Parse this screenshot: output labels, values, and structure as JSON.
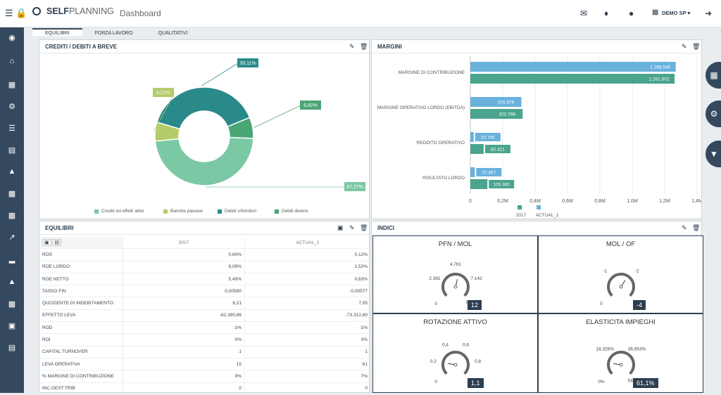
{
  "header": {
    "brand_bold": "SELF",
    "brand_rest": "PLANNING",
    "page_title": "Dashboard",
    "user_label": "DEMO SP"
  },
  "tabs": [
    {
      "label": "EQUILIBRI",
      "active": true
    },
    {
      "label": "FORZA LAVORO",
      "active": false
    },
    {
      "label": "QUALITATIVI",
      "active": false
    }
  ],
  "sidebar": {
    "icons": [
      "dashboard-icon",
      "home-icon",
      "widgets-icon",
      "settings-icon",
      "list-icon",
      "clipboard-icon",
      "bank-icon",
      "briefcase-icon",
      "toolbox-icon",
      "trend-icon",
      "bar-chart-icon",
      "warning-icon",
      "case-icon",
      "save-icon",
      "document-icon"
    ]
  },
  "crediti": {
    "title": "CREDITI / DEBITI A BREVE",
    "colors": [
      "#7bc8a4",
      "#b4cc69",
      "#2a8a8a",
      "#4aa574"
    ]
  },
  "margini": {
    "title": "MARGINI"
  },
  "equilibri": {
    "title": "EQUILIBRI",
    "columns": [
      "2017",
      "ACTUAL_1"
    ],
    "rows": [
      {
        "label": "ROS",
        "v1": "0,60%",
        "v2": "0,12%"
      },
      {
        "label": "ROE LORDO",
        "v1": "6,09%",
        "v2": "1,52%"
      },
      {
        "label": "ROE NETTO",
        "v1": "5,49%",
        "v2": "0,63%"
      },
      {
        "label": "TASSO FIN",
        "v1": "-0,00580",
        "v2": "-0,00577"
      },
      {
        "label": "QUOZIENTE DI INDEBITAMENTO",
        "v1": "6,21",
        "v2": "7,05"
      },
      {
        "label": "EFFETTO LEVA",
        "v1": "-62.380,86",
        "v2": "-73.312,80"
      },
      {
        "label": "ROD",
        "v1": "-1%",
        "v2": "-1%"
      },
      {
        "label": "ROI",
        "v1": "0%",
        "v2": "0%"
      },
      {
        "label": "CAPITAL TURNOVER",
        "v1": "1",
        "v2": "1"
      },
      {
        "label": "LEVA OPERATIVA",
        "v1": "15",
        "v2": "61"
      },
      {
        "label": "% MARGINE DI CONTRIBUZIONE",
        "v1": "9%",
        "v2": "7%"
      },
      {
        "label": "INC.GEST.TRIB",
        "v1": "0",
        "v2": "0"
      }
    ]
  },
  "indici": {
    "title": "INDICI",
    "gauges": [
      {
        "title": "PFN / MOL",
        "value": "12",
        "ticks": [
          "0",
          "2.381",
          "4.761",
          "7.142",
          "9.523"
        ],
        "needle": 0.55
      },
      {
        "title": "MOL / OF",
        "value": "-4",
        "ticks": [
          "0",
          "-1",
          "-2",
          "-3"
        ],
        "needle": 0.62
      },
      {
        "title": "ROTAZIONE ATTIVO",
        "value": "1,1",
        "ticks": [
          "0",
          "0,2",
          "0,4",
          "0,6",
          "0,8",
          "1"
        ],
        "needle": 0.2
      },
      {
        "title": "ELASTICITA IMPIEGHI",
        "value": "61,1%",
        "ticks": [
          "0%",
          "18,326%",
          "36,653%",
          "54,979%"
        ],
        "needle": 0.2
      }
    ]
  },
  "chart_data": [
    {
      "type": "pie",
      "title": "CREDITI / DEBITI A BREVE",
      "categories": [
        "Crediti ed effetti attivi",
        "Banche passive",
        "Debiti v/fornitori",
        "Debiti diversi"
      ],
      "values": [
        47.77,
        6.21,
        39.11,
        6.92
      ],
      "data_labels": [
        "47,77%",
        "6,21%",
        "39,11%",
        "6,92%"
      ],
      "legend_position": "bottom"
    },
    {
      "type": "bar",
      "orientation": "horizontal",
      "title": "MARGINI",
      "categories": [
        "MARGINE DI CONTRIBUZIONE",
        "MARGINE OPERATIVO LORDO (EBITDA)",
        "REDDITO OPERATIVO",
        "RISULTATO LORDO"
      ],
      "series": [
        {
          "name": "ACTUAL_1",
          "color": "#6ab1dc",
          "values": [
            1268549,
            315579,
            20765,
            27457
          ],
          "labels": [
            "1.268.549",
            "315.579",
            "20.765",
            "27.457"
          ]
        },
        {
          "name": "2017",
          "color": "#4aa48e",
          "values": [
            1261002,
            322788,
            82421,
            105365
          ],
          "labels": [
            "1.261.002",
            "322.788",
            "82.421",
            "105.365"
          ]
        }
      ],
      "xlim": [
        0,
        1400000
      ],
      "x_ticks": [
        "0",
        "0,2M",
        "0,4M",
        "0,6M",
        "0,8M",
        "1,0M",
        "1,2M",
        "1,4M"
      ],
      "legend_position": "bottom"
    }
  ]
}
